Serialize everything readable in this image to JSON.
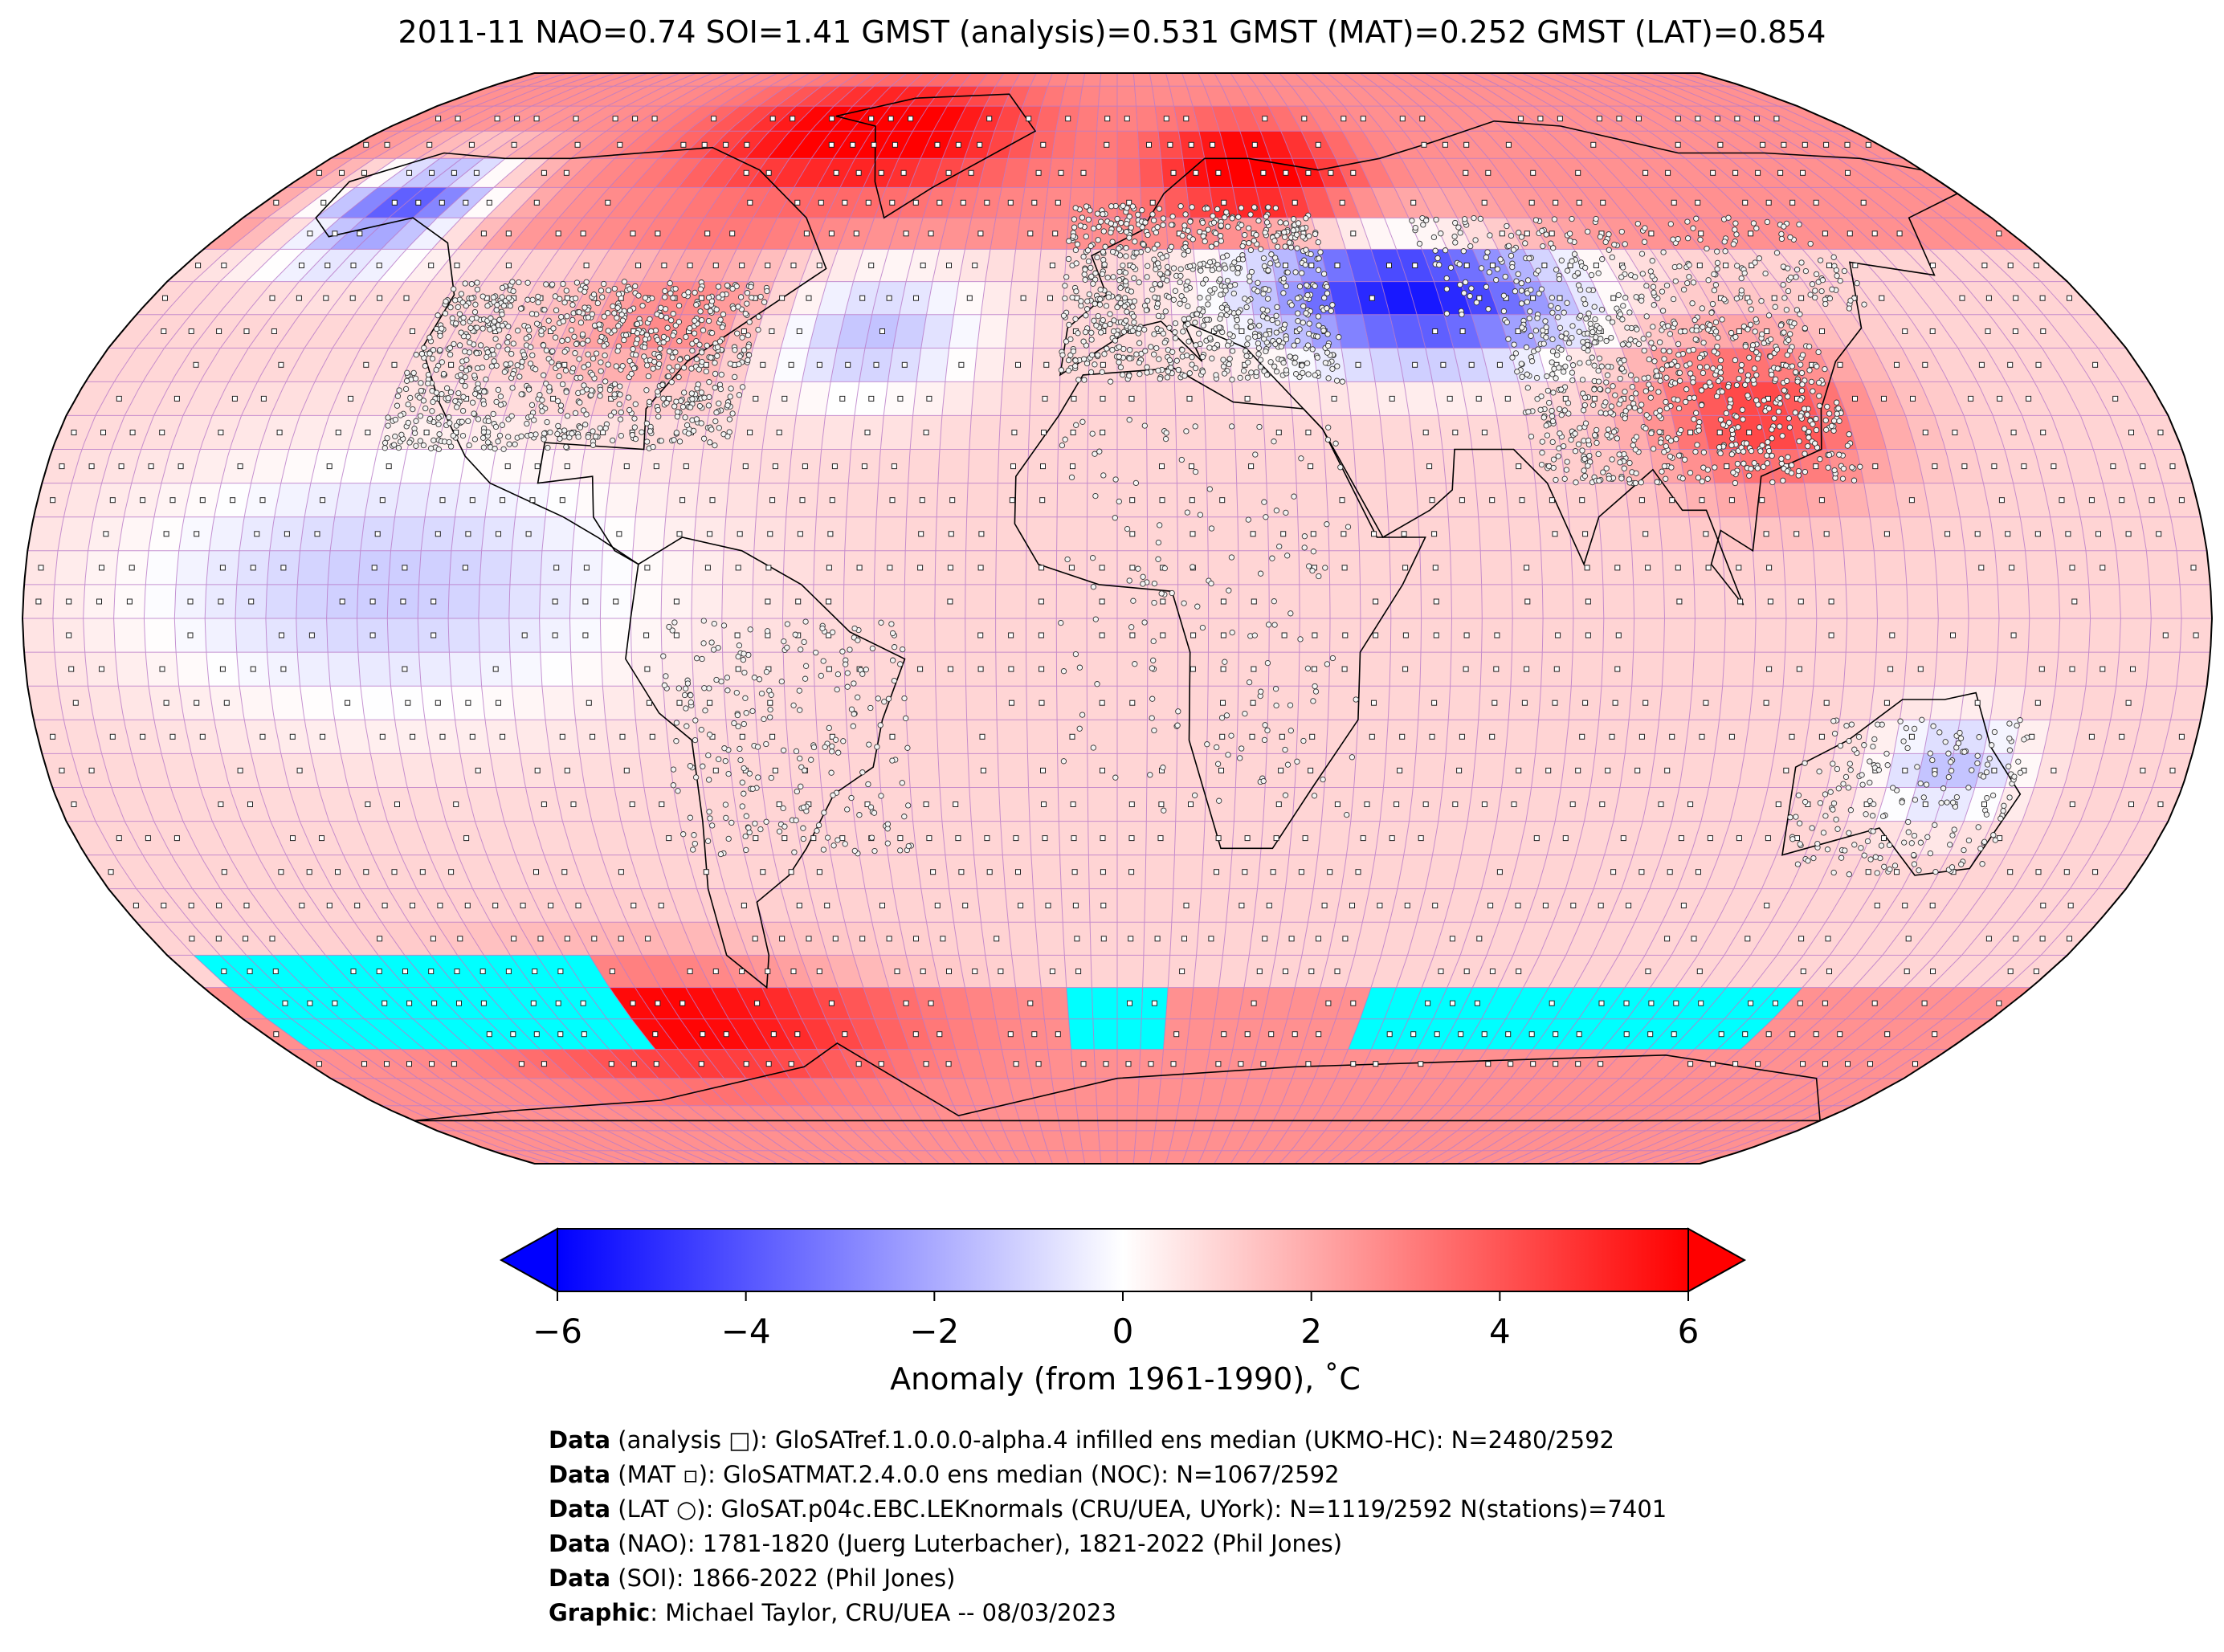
{
  "title": "2011-11 NAO=0.74 SOI=1.41 GMST (analysis)=0.531 GMST (MAT)=0.252 GMST (LAT)=0.854",
  "colorbar": {
    "ticks": [
      "−6",
      "−4",
      "−2",
      "0",
      "2",
      "4",
      "6"
    ],
    "tick_values": [
      -6,
      -4,
      -2,
      0,
      2,
      4,
      6
    ],
    "label": "Anomaly (from 1961-1990), ˚C",
    "colors": {
      "cold": "#0000ff",
      "neutral": "#ffffff",
      "warm": "#ff0000",
      "missing": "#00ffff"
    }
  },
  "credits": [
    {
      "bold": "Data",
      "text": " (analysis □): GloSATref.1.0.0.0-alpha.4 infilled ens median (UKMO-HC): N=2480/2592"
    },
    {
      "bold": "Data",
      "text": " (MAT ▫): GloSATMAT.2.4.0.0 ens median (NOC): N=1067/2592"
    },
    {
      "bold": "Data",
      "text": " (LAT ○): GloSAT.p04c.EBC.LEKnormals (CRU/UEA, UYork): N=1119/2592 N(stations)=7401"
    },
    {
      "bold": "Data",
      "text": " (NAO): 1781-1820 (Juerg Luterbacher), 1821-2022 (Phil Jones)"
    },
    {
      "bold": "Data",
      "text": " (SOI): 1866-2022 (Phil Jones)"
    },
    {
      "bold": "Graphic",
      "text": ": Michael Taylor, CRU/UEA -- 08/03/2023"
    }
  ]
}
